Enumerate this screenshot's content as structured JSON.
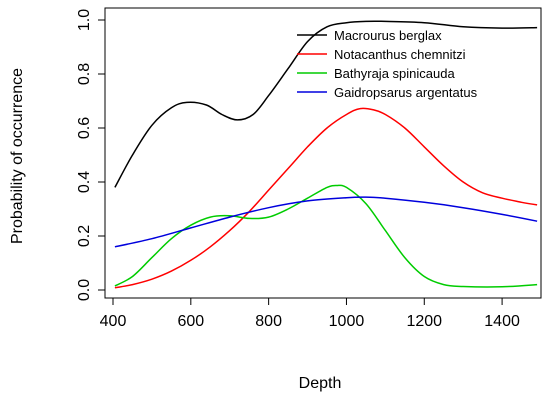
{
  "chart_data": {
    "type": "line",
    "title": "",
    "xlabel": "Depth",
    "ylabel": "Probability of occurrence",
    "xlim": [
      400,
      1500
    ],
    "ylim": [
      0,
      1.0
    ],
    "xticks": [
      400,
      600,
      800,
      1000,
      1200,
      1400
    ],
    "xtick_labels": [
      "400",
      "600",
      "800",
      "1000",
      "1200",
      "1400"
    ],
    "yticks": [
      0.0,
      0.2,
      0.4,
      0.6,
      0.8,
      1.0
    ],
    "ytick_labels": [
      "0.0",
      "0.2",
      "0.4",
      "0.6",
      "0.8",
      "1.0"
    ],
    "grid": false,
    "legend_position": "top-right",
    "series": [
      {
        "name": "Macrourus berglax",
        "color": "#000000",
        "points": [
          [
            405,
            0.38
          ],
          [
            450,
            0.5
          ],
          [
            500,
            0.61
          ],
          [
            550,
            0.675
          ],
          [
            590,
            0.695
          ],
          [
            640,
            0.685
          ],
          [
            680,
            0.65
          ],
          [
            720,
            0.63
          ],
          [
            760,
            0.65
          ],
          [
            800,
            0.72
          ],
          [
            850,
            0.82
          ],
          [
            900,
            0.92
          ],
          [
            950,
            0.975
          ],
          [
            1000,
            0.99
          ],
          [
            1050,
            0.995
          ],
          [
            1100,
            0.995
          ],
          [
            1200,
            0.99
          ],
          [
            1300,
            0.975
          ],
          [
            1400,
            0.97
          ],
          [
            1490,
            0.972
          ]
        ]
      },
      {
        "name": "Notacanthus chemnitzi",
        "color": "#ff0000",
        "points": [
          [
            405,
            0.008
          ],
          [
            450,
            0.02
          ],
          [
            500,
            0.04
          ],
          [
            550,
            0.07
          ],
          [
            600,
            0.11
          ],
          [
            650,
            0.16
          ],
          [
            700,
            0.22
          ],
          [
            750,
            0.29
          ],
          [
            800,
            0.37
          ],
          [
            850,
            0.45
          ],
          [
            900,
            0.53
          ],
          [
            950,
            0.6
          ],
          [
            1000,
            0.65
          ],
          [
            1035,
            0.672
          ],
          [
            1070,
            0.667
          ],
          [
            1100,
            0.65
          ],
          [
            1150,
            0.6
          ],
          [
            1200,
            0.53
          ],
          [
            1250,
            0.46
          ],
          [
            1300,
            0.4
          ],
          [
            1350,
            0.36
          ],
          [
            1400,
            0.34
          ],
          [
            1450,
            0.325
          ],
          [
            1490,
            0.315
          ]
        ]
      },
      {
        "name": "Bathyraja spinicauda",
        "color": "#00cc00",
        "points": [
          [
            405,
            0.015
          ],
          [
            450,
            0.05
          ],
          [
            500,
            0.12
          ],
          [
            550,
            0.19
          ],
          [
            600,
            0.24
          ],
          [
            650,
            0.27
          ],
          [
            700,
            0.275
          ],
          [
            750,
            0.265
          ],
          [
            800,
            0.27
          ],
          [
            850,
            0.3
          ],
          [
            900,
            0.34
          ],
          [
            950,
            0.38
          ],
          [
            975,
            0.387
          ],
          [
            1000,
            0.38
          ],
          [
            1050,
            0.32
          ],
          [
            1100,
            0.22
          ],
          [
            1150,
            0.12
          ],
          [
            1200,
            0.05
          ],
          [
            1250,
            0.02
          ],
          [
            1300,
            0.013
          ],
          [
            1400,
            0.012
          ],
          [
            1490,
            0.02
          ]
        ]
      },
      {
        "name": "Gaidropsarus argentatus",
        "color": "#0000dd",
        "points": [
          [
            405,
            0.16
          ],
          [
            500,
            0.19
          ],
          [
            600,
            0.23
          ],
          [
            700,
            0.27
          ],
          [
            800,
            0.305
          ],
          [
            900,
            0.33
          ],
          [
            1000,
            0.342
          ],
          [
            1050,
            0.344
          ],
          [
            1100,
            0.34
          ],
          [
            1200,
            0.325
          ],
          [
            1300,
            0.305
          ],
          [
            1400,
            0.28
          ],
          [
            1490,
            0.255
          ]
        ]
      }
    ]
  }
}
